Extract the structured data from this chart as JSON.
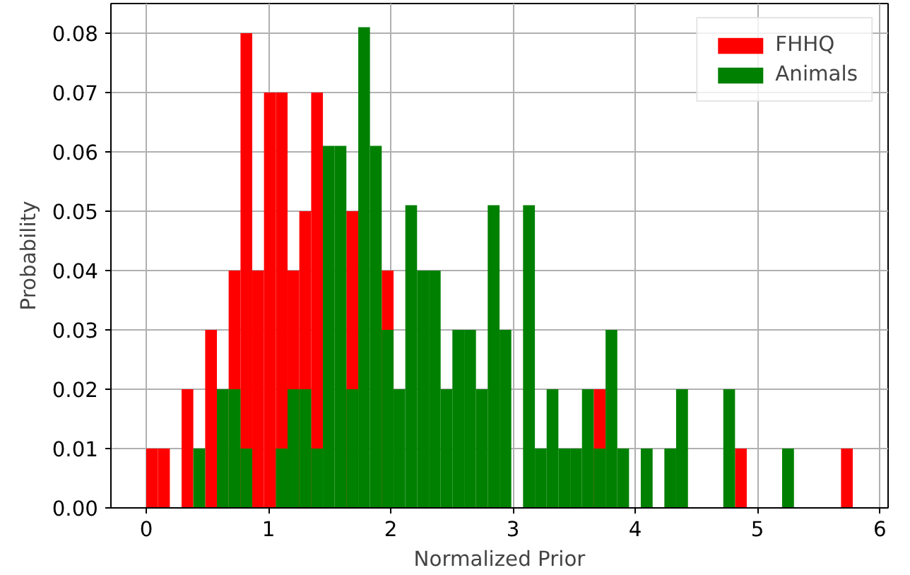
{
  "chart_data": {
    "type": "histogram",
    "xlabel": "Normalized Prior",
    "ylabel": "Probability",
    "bins": [
      0,
      0.096,
      0.193,
      0.289,
      0.385,
      0.482,
      0.578,
      0.674,
      0.771,
      0.867,
      0.963,
      1.06,
      1.156,
      1.252,
      1.349,
      1.445,
      1.541,
      1.637,
      1.734,
      1.83,
      1.926,
      2.023,
      2.119,
      2.215,
      2.312,
      2.408,
      2.504,
      2.601,
      2.697,
      2.793,
      2.89,
      2.986,
      3.082,
      3.179,
      3.275,
      3.371,
      3.468,
      3.564,
      3.66,
      3.757,
      3.853,
      3.949,
      4.045,
      4.142,
      4.238,
      4.334,
      4.431,
      4.527,
      4.623,
      4.72,
      4.816,
      4.912,
      5.009,
      5.105,
      5.201,
      5.298,
      5.394,
      5.49,
      5.587,
      5.683,
      5.779
    ],
    "series": [
      {
        "name": "FHHQ",
        "color": "#ff0000",
        "values": [
          0.01,
          0.01,
          0,
          0.02,
          null,
          0.03,
          null,
          0.04,
          0.08,
          0.04,
          0.07,
          0.07,
          0.04,
          0.05,
          0.07,
          null,
          null,
          0.05,
          null,
          null,
          0.04,
          null,
          null,
          null,
          null,
          null,
          null,
          null,
          null,
          null,
          null,
          0,
          null,
          null,
          null,
          null,
          null,
          null,
          0.02,
          null,
          null,
          0,
          null,
          0,
          null,
          null,
          0,
          0,
          0,
          null,
          0.01,
          0,
          0,
          0,
          null,
          0,
          0,
          0,
          0,
          0.01
        ]
      },
      {
        "name": "Animals",
        "color": "#008000",
        "values": [
          0,
          0,
          0,
          0,
          0.01,
          0,
          0.02,
          0.02,
          0.01,
          0,
          0,
          0.01,
          0.02,
          0.02,
          0.01,
          0.061,
          0.061,
          0.02,
          0.081,
          0.061,
          0.03,
          0.02,
          0.051,
          0.04,
          0.04,
          0.02,
          0.03,
          0.03,
          0.02,
          0.051,
          0.03,
          0,
          0.051,
          0.01,
          0.02,
          0.01,
          0.01,
          0.02,
          0.01,
          0.03,
          0.01,
          0,
          0.01,
          0,
          0.01,
          0.02,
          0,
          0,
          0,
          0.02,
          0,
          0,
          0,
          0,
          0.01,
          0,
          0,
          0,
          0,
          0
        ]
      }
    ],
    "xlim": [
      -0.289,
      6.068
    ],
    "ylim": [
      0,
      0.085
    ],
    "xticks": [
      0,
      1,
      2,
      3,
      4,
      5,
      6
    ],
    "yticks": [
      {
        "value": 0,
        "label": "0.00"
      },
      {
        "value": 0.01,
        "label": "0.01"
      },
      {
        "value": 0.02,
        "label": "0.02"
      },
      {
        "value": 0.03,
        "label": "0.03"
      },
      {
        "value": 0.04,
        "label": "0.04"
      },
      {
        "value": 0.05,
        "label": "0.05"
      },
      {
        "value": 0.06,
        "label": "0.06"
      },
      {
        "value": 0.07,
        "label": "0.07"
      },
      {
        "value": 0.08,
        "label": "0.08"
      }
    ],
    "grid": true,
    "legend": "top right"
  }
}
